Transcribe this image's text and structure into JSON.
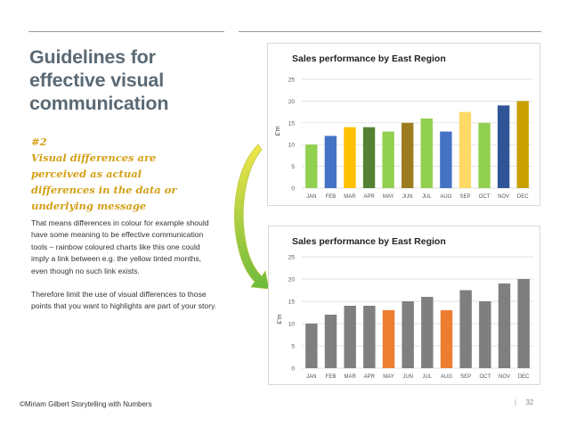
{
  "slide": {
    "title_lines": [
      "Guidelines for",
      "effective visual",
      "communication"
    ],
    "subhead_lines": [
      "#2",
      "Visual differences are",
      "perceived as actual",
      "differences in the data or",
      "underlying message"
    ],
    "body_paragraphs": [
      "That means differences in colour for example should have some meaning to be effective communication tools – rainbow coloured charts like this one could imply a link between e.g. the yellow tinted months, even though no such link exists.",
      "Therefore limit the use of visual differences to those points that you want to highlights are part of your story."
    ],
    "footer": "©Miriam Gilbert Storytelling with Numbers",
    "page_separator": "|",
    "page_number": "32",
    "colors": {
      "title": "#5a6a75",
      "subhead": "#d4a017",
      "arrow_start": "#f2e64a",
      "arrow_end": "#6dbb3c"
    }
  },
  "chart_data": [
    {
      "type": "bar",
      "title": "Sales performance by East Region",
      "ylabel": "£'m",
      "xlabel": "",
      "categories": [
        "JAN",
        "FEB",
        "MAR",
        "APR",
        "MAY",
        "JUN",
        "JUL",
        "AUG",
        "SEP",
        "OCT",
        "NOV",
        "DEC"
      ],
      "values": [
        10,
        12,
        14,
        14,
        13,
        15,
        16,
        13,
        17.5,
        15,
        19,
        20
      ],
      "colors": [
        "#92d050",
        "#4472c4",
        "#ffc000",
        "#548235",
        "#92d050",
        "#9c7c1f",
        "#92d050",
        "#4472c4",
        "#ffd966",
        "#92d050",
        "#2f5597",
        "#c9a100"
      ],
      "ylim": [
        0,
        25
      ],
      "yticks": [
        0,
        5,
        10,
        15,
        20,
        25
      ],
      "grid": true
    },
    {
      "type": "bar",
      "title": "Sales performance by East Region",
      "ylabel": "£'m",
      "xlabel": "",
      "categories": [
        "JAN",
        "FEB",
        "MAR",
        "APR",
        "MAY",
        "JUN",
        "JUL",
        "AUG",
        "SEP",
        "OCT",
        "NOV",
        "DEC"
      ],
      "values": [
        10,
        12,
        14,
        14,
        13,
        15,
        16,
        13,
        17.5,
        15,
        19,
        20
      ],
      "colors": [
        "#7f7f7f",
        "#7f7f7f",
        "#7f7f7f",
        "#7f7f7f",
        "#ed7d31",
        "#7f7f7f",
        "#7f7f7f",
        "#ed7d31",
        "#7f7f7f",
        "#7f7f7f",
        "#7f7f7f",
        "#7f7f7f"
      ],
      "ylim": [
        0,
        25
      ],
      "yticks": [
        0,
        5,
        10,
        15,
        20,
        25
      ],
      "grid": true
    }
  ]
}
